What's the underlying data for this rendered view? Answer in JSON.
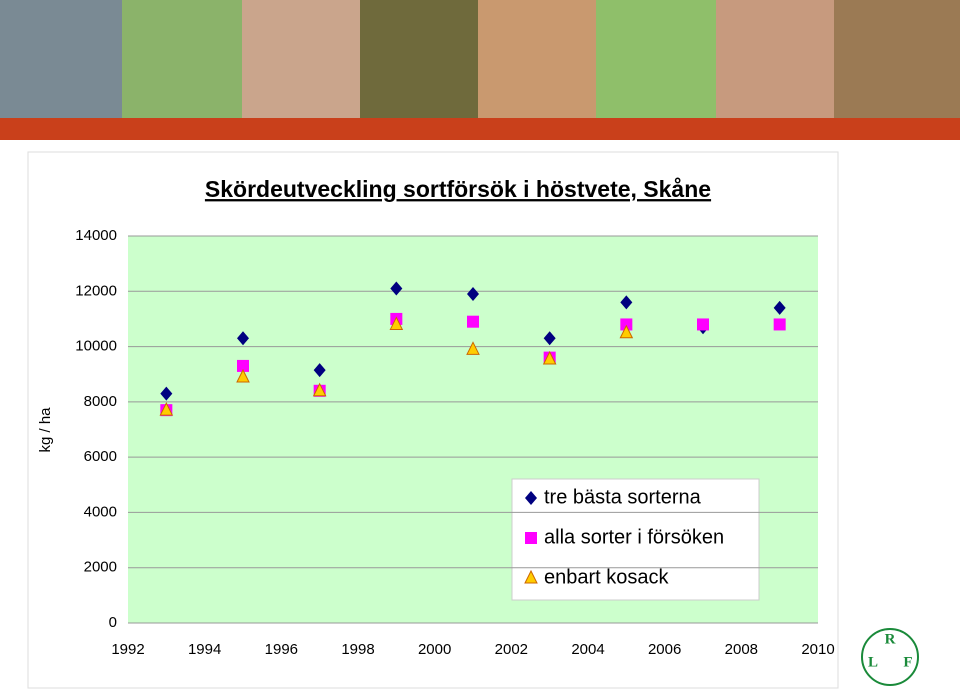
{
  "chart_data": {
    "type": "scatter",
    "title": "Skördeutveckling sortförsök i höstvete, Skåne",
    "y_label": "kg / ha",
    "xlim": [
      1992,
      2010
    ],
    "xticks": [
      1992,
      1994,
      1996,
      1998,
      2000,
      2002,
      2004,
      2006,
      2008,
      2010
    ],
    "ylim": [
      0,
      14000
    ],
    "yticks": [
      0,
      2000,
      4000,
      6000,
      8000,
      10000,
      12000,
      14000
    ],
    "grid": true,
    "legend": "lower right",
    "x": [
      1993,
      1995,
      1997,
      1999,
      2001,
      2003,
      2005,
      2007,
      2009
    ],
    "series": [
      {
        "name": "tre bästa sorterna",
        "color": "#000080",
        "marker": "diamond",
        "values": [
          8300,
          10300,
          9150,
          12100,
          11900,
          10300,
          11600,
          10700,
          11400
        ]
      },
      {
        "name": "alla sorter i försöken",
        "color": "#ff00ff",
        "marker": "square",
        "values": [
          7700,
          9300,
          8400,
          11000,
          10900,
          9600,
          10800,
          10800,
          10800
        ]
      },
      {
        "name": "enbart kosack",
        "color": "#ffcc00",
        "marker": "triangle",
        "values": [
          7700,
          8900,
          8400,
          10800,
          9900,
          9550,
          10500,
          null,
          null
        ]
      }
    ]
  },
  "logo_letters": [
    "R",
    "L",
    "F"
  ]
}
